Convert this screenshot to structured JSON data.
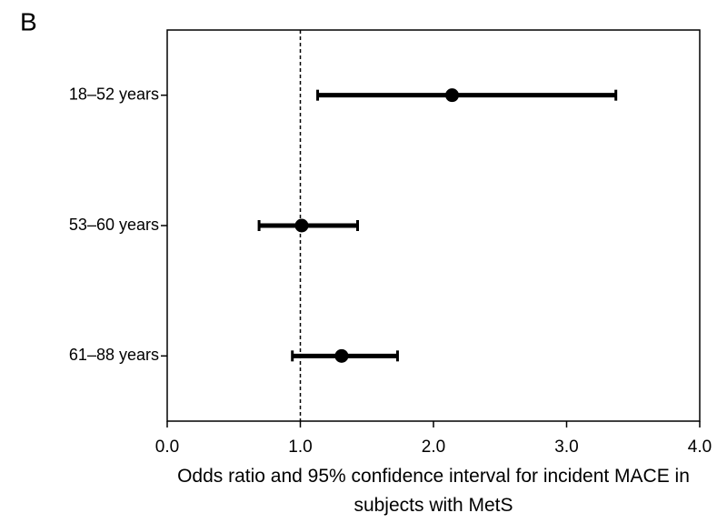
{
  "chart_data": {
    "type": "forest",
    "panel_label": "B",
    "xlabel": "Odds ratio and 95% confidence interval for incident MACE in subjects with MetS",
    "categories": [
      "18–52 years",
      "53–60 years",
      "61–88 years"
    ],
    "values": [
      2.14,
      1.01,
      1.31
    ],
    "lower": [
      1.13,
      0.69,
      0.94
    ],
    "upper": [
      3.37,
      1.43,
      1.73
    ],
    "color": "#000000",
    "reference_line": 1,
    "xlim": [
      0,
      4
    ],
    "xticks": [
      {
        "value": 0,
        "label": "0.0"
      },
      {
        "value": 1,
        "label": "1.0"
      },
      {
        "value": 2,
        "label": "2.0"
      },
      {
        "value": 3,
        "label": "3.0"
      },
      {
        "value": 4,
        "label": "4.0"
      }
    ]
  }
}
